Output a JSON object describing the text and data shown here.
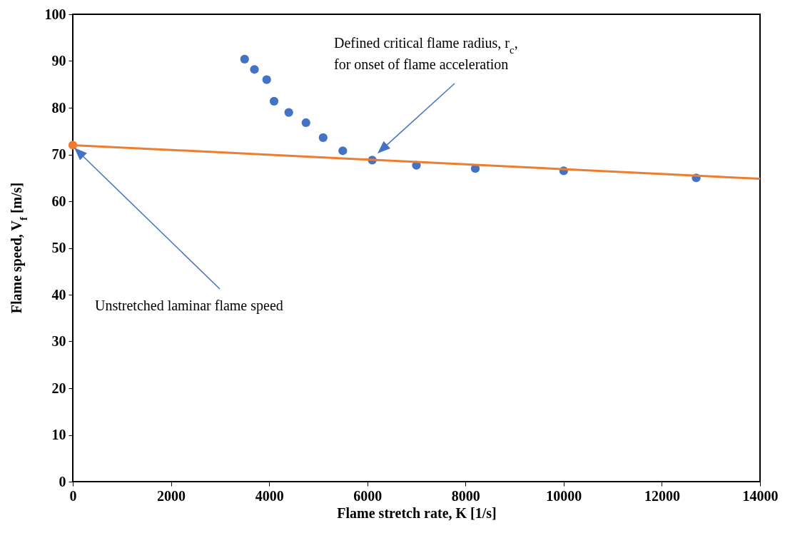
{
  "chart_data": {
    "type": "scatter",
    "xlabel": "Flame stretch rate, K [1/s]",
    "ylabel": "Flame speed, V$_{f}$ [m/s]",
    "xlim": [
      0,
      14000
    ],
    "ylim": [
      0,
      100
    ],
    "xticks": [
      0,
      2000,
      4000,
      6000,
      8000,
      10000,
      12000,
      14000
    ],
    "yticks": [
      0,
      10,
      20,
      30,
      40,
      50,
      60,
      70,
      80,
      90,
      100
    ],
    "grid": false,
    "marker": "circle",
    "series": [
      {
        "color": "#4472c4",
        "x": [
          3500,
          3700,
          3950,
          4100,
          4400,
          4750,
          5100,
          5500,
          6100,
          7000,
          8200,
          10000,
          12700
        ],
        "values": [
          90.4,
          88.2,
          86.0,
          81.4,
          79.0,
          76.8,
          73.6,
          70.8,
          68.8,
          67.7,
          67.0,
          66.5,
          65.0
        ]
      },
      {
        "type": "line",
        "marker": "none",
        "color": "#ed7d31",
        "x": [
          0,
          14000
        ],
        "values": [
          72,
          64.8
        ]
      },
      {
        "color": "#ed7d31",
        "x": [
          0
        ],
        "values": [
          72
        ]
      }
    ],
    "annotations": [
      "Defined critical flame radius, r$_{c}$,\nfor onset of flame acceleration",
      "Unstretched laminar flame speed"
    ]
  }
}
